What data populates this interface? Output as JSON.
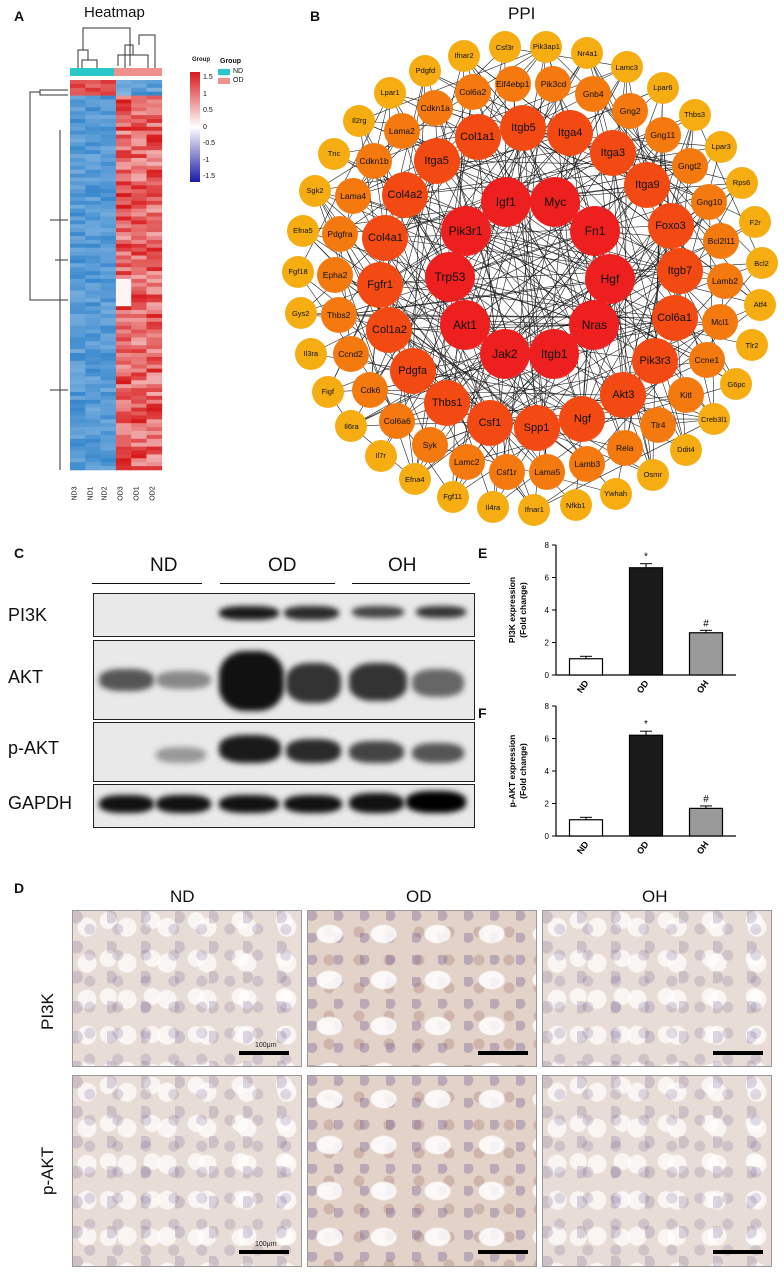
{
  "panels": {
    "a": "A",
    "b": "B",
    "c": "C",
    "d": "D",
    "e": "E",
    "f": "F"
  },
  "heatmap": {
    "title": "Heatmap",
    "legend_title": "Group",
    "colorbar_ticks": [
      "1.5",
      "1",
      "0.5",
      "0",
      "-0.5",
      "-1",
      "-1.5"
    ],
    "group_legend": [
      {
        "name": "ND",
        "color": "#29c9c9"
      },
      {
        "name": "OD",
        "color": "#f0908f"
      }
    ],
    "group_bar_title": "Group",
    "columns": [
      "ND3",
      "ND1",
      "ND2",
      "OD3",
      "OD1",
      "OD2"
    ],
    "colors": {
      "high": "#d7191c",
      "mid": "#ffffff",
      "low": "#2c7bb6"
    }
  },
  "ppi": {
    "title": "PPI",
    "inner": [
      "Myc",
      "Fn1",
      "Hgf",
      "Nras",
      "Itgb1",
      "Jak2",
      "Akt1",
      "Trp53",
      "Pik3r1",
      "Igf1"
    ],
    "middle": [
      "Itga4",
      "Itga3",
      "Itga9",
      "Foxo3",
      "Itgb7",
      "Col6a1",
      "Pik3r3",
      "Akt3",
      "Ngf",
      "Spp1",
      "Csf1",
      "Thbs1",
      "Pdgfa",
      "Col1a2",
      "Fgfr1",
      "Col4a1",
      "Col4a2",
      "Itga5",
      "Col1a1",
      "Itgb5"
    ],
    "outer": [
      "Pik3cd",
      "Gnb4",
      "Gng2",
      "Gng11",
      "Gngt2",
      "Gng10",
      "Bcl2l11",
      "Lamb2",
      "Mcl1",
      "Ccne1",
      "Kitl",
      "Tlr4",
      "Rela",
      "Lamb3",
      "Lama5",
      "Csf1r",
      "Lamc2",
      "Syk",
      "Col6a6",
      "Cdk6",
      "Ccnd2",
      "Thbs2",
      "Epha2",
      "Pdgfra",
      "Lama4",
      "Cdkn1b",
      "Lama2",
      "Cdkn1a",
      "Col6a2",
      "Eif4ebp1"
    ],
    "rim": [
      "Pik3ap1",
      "Nr4a1",
      "Lamc3",
      "Lpar6",
      "Thbs3",
      "Lpar3",
      "Rps6",
      "F2r",
      "Bcl2",
      "Atf4",
      "Tlr2",
      "G6pc",
      "Creb3l1",
      "Ddit4",
      "Osmr",
      "Ywhah",
      "Nfkb1",
      "Ifnar1",
      "Il4ra",
      "Fgf11",
      "Efna4",
      "Il7r",
      "Il6ra",
      "Figf",
      "Il3ra",
      "Gys2",
      "Fgf18",
      "Efna5",
      "Sgk2",
      "Tnc",
      "Il2rg",
      "Lpar1",
      "Pdgfd",
      "Ifnar2",
      "Csf3r"
    ]
  },
  "blot": {
    "groups": [
      "ND",
      "OD",
      "OH"
    ],
    "rows": [
      "PI3K",
      "AKT",
      "p-AKT",
      "GAPDH"
    ]
  },
  "bar_e": {
    "chart_data": {
      "type": "bar",
      "categories": [
        "ND",
        "OD",
        "OH"
      ],
      "values": [
        1.0,
        6.6,
        2.6
      ],
      "errors": [
        0.15,
        0.25,
        0.15
      ],
      "colors": [
        "#ffffff",
        "#1a1a1a",
        "#9a9a9a"
      ],
      "ylabel": "PI3K expression\n(Fold change)",
      "ylabel_lines": [
        "PI3K expression",
        "(Fold change)"
      ],
      "ylim": [
        0,
        8
      ],
      "yticks": [
        "0",
        "2",
        "4",
        "6",
        "8"
      ],
      "annotations": [
        "",
        "*",
        "#"
      ]
    }
  },
  "bar_f": {
    "chart_data": {
      "type": "bar",
      "categories": [
        "ND",
        "OD",
        "OH"
      ],
      "values": [
        1.0,
        6.2,
        1.7
      ],
      "errors": [
        0.15,
        0.25,
        0.15
      ],
      "colors": [
        "#ffffff",
        "#1a1a1a",
        "#9a9a9a"
      ],
      "ylabel": "p-AKT expression\n(Fold change)",
      "ylabel_lines": [
        "p-AKT expression",
        "(Fold change)"
      ],
      "ylim": [
        0,
        8
      ],
      "yticks": [
        "0",
        "2",
        "4",
        "6",
        "8"
      ],
      "annotations": [
        "",
        "*",
        "#"
      ]
    }
  },
  "ihc": {
    "columns": [
      "ND",
      "OD",
      "OH"
    ],
    "rows": [
      "PI3K",
      "p-AKT"
    ],
    "scale_label": "100μm"
  }
}
